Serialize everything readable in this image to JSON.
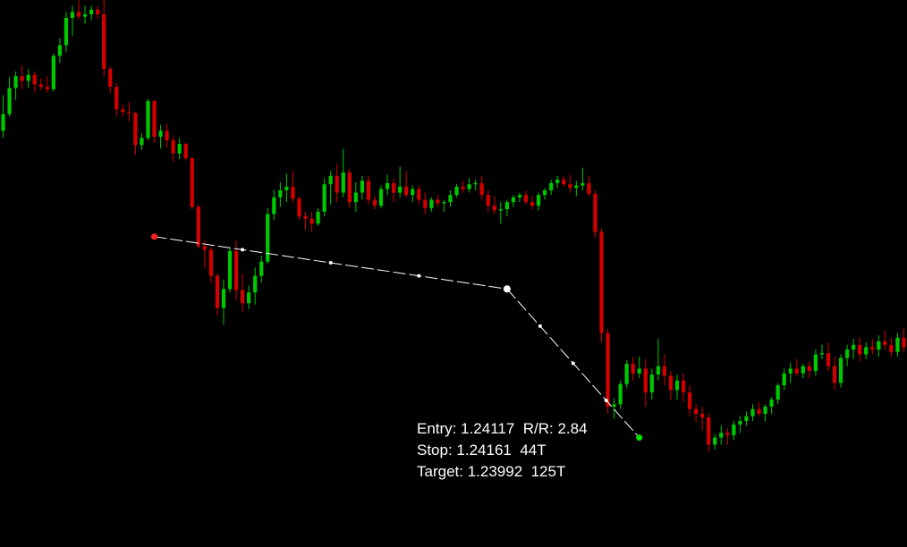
{
  "theme": {
    "background": "#000000",
    "bull_color": "#00c800",
    "bear_color": "#d40000",
    "line_color": "#ffffff",
    "stop_marker_color": "#ff2020",
    "target_marker_color": "#00e000"
  },
  "rr_tool": {
    "entry_text": "Entry: 1.24117  R/R: 2.84",
    "stop_text": "Stop: 1.24161  44T",
    "target_text": "Target: 1.23992  125T",
    "entry": 1.24117,
    "stop": 1.24161,
    "target": 1.23992,
    "risk_reward": 2.84,
    "stop_ticks": 44,
    "target_ticks": 125
  },
  "chart_data": {
    "type": "candlestick",
    "ylim": [
      1.239,
      1.2436
    ],
    "bar_count": 144,
    "candles": [
      [
        1.2425,
        1.2428,
        1.24244,
        1.24264
      ],
      [
        1.24264,
        1.24295,
        1.24262,
        1.24286
      ],
      [
        1.24286,
        1.243,
        1.24276,
        1.24296
      ],
      [
        1.24296,
        1.24305,
        1.24285,
        1.24292
      ],
      [
        1.24292,
        1.24302,
        1.24286,
        1.24297
      ],
      [
        1.24297,
        1.243,
        1.24282,
        1.24289
      ],
      [
        1.24289,
        1.24294,
        1.24284,
        1.24287
      ],
      [
        1.24287,
        1.24296,
        1.24282,
        1.24285
      ],
      [
        1.24285,
        1.24315,
        1.24283,
        1.24313
      ],
      [
        1.24313,
        1.24328,
        1.24307,
        1.24322
      ],
      [
        1.24322,
        1.2435,
        1.24316,
        1.24345
      ],
      [
        1.24345,
        1.24355,
        1.2433,
        1.2435
      ],
      [
        1.2435,
        1.2436,
        1.24344,
        1.24346
      ],
      [
        1.24346,
        1.24355,
        1.2434,
        1.24348
      ],
      [
        1.24348,
        1.24355,
        1.24343,
        1.24352
      ],
      [
        1.24352,
        1.24355,
        1.24344,
        1.24348
      ],
      [
        1.24348,
        1.2436,
        1.24296,
        1.24302
      ],
      [
        1.24302,
        1.24304,
        1.24282,
        1.24287
      ],
      [
        1.24287,
        1.2429,
        1.24262,
        1.24268
      ],
      [
        1.24268,
        1.24272,
        1.24262,
        1.24266
      ],
      [
        1.24266,
        1.24274,
        1.24258,
        1.24265
      ],
      [
        1.24265,
        1.24266,
        1.2423,
        1.24238
      ],
      [
        1.24238,
        1.24248,
        1.24234,
        1.24244
      ],
      [
        1.24244,
        1.24277,
        1.24242,
        1.24275
      ],
      [
        1.24275,
        1.24276,
        1.2424,
        1.24245
      ],
      [
        1.24245,
        1.24255,
        1.24235,
        1.2425
      ],
      [
        1.2425,
        1.24256,
        1.24236,
        1.24242
      ],
      [
        1.24242,
        1.24245,
        1.24224,
        1.24231
      ],
      [
        1.24231,
        1.24244,
        1.24226,
        1.24239
      ],
      [
        1.24239,
        1.2424,
        1.24225,
        1.24227
      ],
      [
        1.24227,
        1.24228,
        1.24184,
        1.24186
      ],
      [
        1.24186,
        1.24188,
        1.24151,
        1.24153
      ],
      [
        1.24153,
        1.24158,
        1.24135,
        1.2415
      ],
      [
        1.2415,
        1.24152,
        1.24122,
        1.24128
      ],
      [
        1.24128,
        1.2413,
        1.24095,
        1.24101
      ],
      [
        1.24101,
        1.24125,
        1.24087,
        1.24117
      ],
      [
        1.24117,
        1.24152,
        1.24114,
        1.24149
      ],
      [
        1.24149,
        1.24158,
        1.24108,
        1.24116
      ],
      [
        1.24116,
        1.2413,
        1.24098,
        1.24105
      ],
      [
        1.24105,
        1.2412,
        1.241,
        1.24114
      ],
      [
        1.24114,
        1.24135,
        1.24104,
        1.24128
      ],
      [
        1.24128,
        1.24145,
        1.24122,
        1.2414
      ],
      [
        1.2414,
        1.24185,
        1.24138,
        1.2418
      ],
      [
        1.2418,
        1.242,
        1.24175,
        1.24194
      ],
      [
        1.24194,
        1.24207,
        1.24186,
        1.242
      ],
      [
        1.242,
        1.24214,
        1.2419,
        1.24203
      ],
      [
        1.24203,
        1.24216,
        1.2419,
        1.24193
      ],
      [
        1.24193,
        1.24195,
        1.24175,
        1.24178
      ],
      [
        1.24178,
        1.24182,
        1.24167,
        1.24176
      ],
      [
        1.24176,
        1.24182,
        1.24165,
        1.24172
      ],
      [
        1.24172,
        1.24185,
        1.2417,
        1.24182
      ],
      [
        1.24182,
        1.2421,
        1.24178,
        1.24205
      ],
      [
        1.24205,
        1.24216,
        1.24188,
        1.24212
      ],
      [
        1.24212,
        1.24222,
        1.2419,
        1.24198
      ],
      [
        1.24198,
        1.24235,
        1.24194,
        1.24215
      ],
      [
        1.24215,
        1.24218,
        1.24185,
        1.2419
      ],
      [
        1.2419,
        1.24207,
        1.24182,
        1.24198
      ],
      [
        1.24198,
        1.24212,
        1.24192,
        1.24208
      ],
      [
        1.24208,
        1.24212,
        1.24188,
        1.24192
      ],
      [
        1.24192,
        1.24195,
        1.24184,
        1.24187
      ],
      [
        1.24187,
        1.24204,
        1.24185,
        1.24201
      ],
      [
        1.24201,
        1.24213,
        1.24196,
        1.24206
      ],
      [
        1.24206,
        1.2421,
        1.2419,
        1.24198
      ],
      [
        1.24198,
        1.2422,
        1.24194,
        1.24203
      ],
      [
        1.24203,
        1.24216,
        1.24194,
        1.24196
      ],
      [
        1.24196,
        1.24204,
        1.2419,
        1.24201
      ],
      [
        1.24201,
        1.24204,
        1.24188,
        1.24192
      ],
      [
        1.24192,
        1.24198,
        1.2418,
        1.24185
      ],
      [
        1.24185,
        1.24194,
        1.24182,
        1.24192
      ],
      [
        1.24192,
        1.24196,
        1.24186,
        1.24189
      ],
      [
        1.24189,
        1.24192,
        1.24182,
        1.2419
      ],
      [
        1.2419,
        1.242,
        1.24186,
        1.24196
      ],
      [
        1.24196,
        1.24205,
        1.24194,
        1.24203
      ],
      [
        1.24203,
        1.24208,
        1.24198,
        1.24201
      ],
      [
        1.24201,
        1.2421,
        1.24198,
        1.24205
      ],
      [
        1.24205,
        1.24209,
        1.242,
        1.24206
      ],
      [
        1.24206,
        1.24212,
        1.24192,
        1.24196
      ],
      [
        1.24196,
        1.242,
        1.24182,
        1.24187
      ],
      [
        1.24187,
        1.24195,
        1.2418,
        1.24183
      ],
      [
        1.24183,
        1.2419,
        1.24172,
        1.24184
      ],
      [
        1.24184,
        1.24192,
        1.24178,
        1.2419
      ],
      [
        1.2419,
        1.24196,
        1.24186,
        1.24194
      ],
      [
        1.24194,
        1.24198,
        1.2419,
        1.24196
      ],
      [
        1.24196,
        1.242,
        1.24188,
        1.2419
      ],
      [
        1.2419,
        1.24195,
        1.24184,
        1.24187
      ],
      [
        1.24187,
        1.24198,
        1.24183,
        1.24196
      ],
      [
        1.24196,
        1.24202,
        1.24192,
        1.242
      ],
      [
        1.242,
        1.24209,
        1.24196,
        1.24206
      ],
      [
        1.24206,
        1.24212,
        1.24202,
        1.24209
      ],
      [
        1.24209,
        1.24212,
        1.24203,
        1.24205
      ],
      [
        1.24205,
        1.24213,
        1.24198,
        1.24202
      ],
      [
        1.24202,
        1.24208,
        1.24195,
        1.24204
      ],
      [
        1.24204,
        1.24219,
        1.242,
        1.24206
      ],
      [
        1.24206,
        1.24212,
        1.24195,
        1.24197
      ],
      [
        1.24197,
        1.242,
        1.2416,
        1.24165
      ],
      [
        1.24165,
        1.24168,
        1.24072,
        1.2408
      ],
      [
        1.2408,
        1.24083,
        1.24012,
        1.24018
      ],
      [
        1.24018,
        1.24025,
        1.24008,
        1.2402
      ],
      [
        1.2402,
        1.2404,
        1.24016,
        1.24037
      ],
      [
        1.24037,
        1.24057,
        1.24034,
        1.24054
      ],
      [
        1.24054,
        1.2406,
        1.2404,
        1.24046
      ],
      [
        1.24046,
        1.2406,
        1.24042,
        1.2405
      ],
      [
        1.2405,
        1.24058,
        1.24018,
        1.2403
      ],
      [
        1.2403,
        1.2405,
        1.24024,
        1.24045
      ],
      [
        1.24045,
        1.24075,
        1.2404,
        1.24052
      ],
      [
        1.24052,
        1.24062,
        1.24036,
        1.24044
      ],
      [
        1.24044,
        1.24048,
        1.24024,
        1.24032
      ],
      [
        1.24032,
        1.24045,
        1.24024,
        1.2404
      ],
      [
        1.2404,
        1.24046,
        1.24022,
        1.2403
      ],
      [
        1.2403,
        1.24036,
        1.2401,
        1.24016
      ],
      [
        1.24016,
        1.2402,
        1.24005,
        1.24012
      ],
      [
        1.24012,
        1.24018,
        1.23998,
        1.24009
      ],
      [
        1.24009,
        1.24012,
        1.2398,
        1.23986
      ],
      [
        1.23986,
        1.23995,
        1.23982,
        1.23992
      ],
      [
        1.23992,
        1.24002,
        1.23986,
        1.23996
      ],
      [
        1.23996,
        1.24,
        1.23986,
        1.23994
      ],
      [
        1.23994,
        1.24006,
        1.2399,
        1.24003
      ],
      [
        1.24003,
        1.2401,
        1.23996,
        1.24006
      ],
      [
        1.24006,
        1.24014,
        1.24002,
        1.2401
      ],
      [
        1.2401,
        1.2402,
        1.24006,
        1.24016
      ],
      [
        1.24016,
        1.24022,
        1.2401,
        1.24012
      ],
      [
        1.24012,
        1.2402,
        1.24006,
        1.24018
      ],
      [
        1.24018,
        1.24026,
        1.24012,
        1.24024
      ],
      [
        1.24024,
        1.24038,
        1.2402,
        1.24036
      ],
      [
        1.24036,
        1.2405,
        1.24032,
        1.24046
      ],
      [
        1.24046,
        1.24055,
        1.24038,
        1.2405
      ],
      [
        1.2405,
        1.24058,
        1.24044,
        1.24046
      ],
      [
        1.24046,
        1.24054,
        1.24042,
        1.24052
      ],
      [
        1.24052,
        1.24056,
        1.24042,
        1.24048
      ],
      [
        1.24048,
        1.24066,
        1.24044,
        1.24062
      ],
      [
        1.24062,
        1.2407,
        1.24058,
        1.24063
      ],
      [
        1.24063,
        1.24072,
        1.24048,
        1.24052
      ],
      [
        1.24052,
        1.2406,
        1.24032,
        1.24038
      ],
      [
        1.24038,
        1.24062,
        1.24034,
        1.24059
      ],
      [
        1.24059,
        1.2407,
        1.24052,
        1.24066
      ],
      [
        1.24066,
        1.24075,
        1.24058,
        1.2407
      ],
      [
        1.2407,
        1.24076,
        1.24056,
        1.24062
      ],
      [
        1.24062,
        1.24072,
        1.24058,
        1.24068
      ],
      [
        1.24068,
        1.24075,
        1.24062,
        1.24066
      ],
      [
        1.24066,
        1.24078,
        1.2406,
        1.24073
      ],
      [
        1.24073,
        1.24082,
        1.24066,
        1.2407
      ],
      [
        1.2407,
        1.24076,
        1.2406,
        1.24064
      ],
      [
        1.24064,
        1.2408,
        1.2406,
        1.24076
      ],
      [
        1.24076,
        1.24084,
        1.24064,
        1.24068
      ]
    ],
    "rr_points": [
      {
        "role": "stop",
        "bar": 24,
        "price": 1.24161
      },
      {
        "role": "entry",
        "bar": 80,
        "price": 1.24117
      },
      {
        "role": "target",
        "bar": 101,
        "price": 1.23992
      }
    ]
  }
}
